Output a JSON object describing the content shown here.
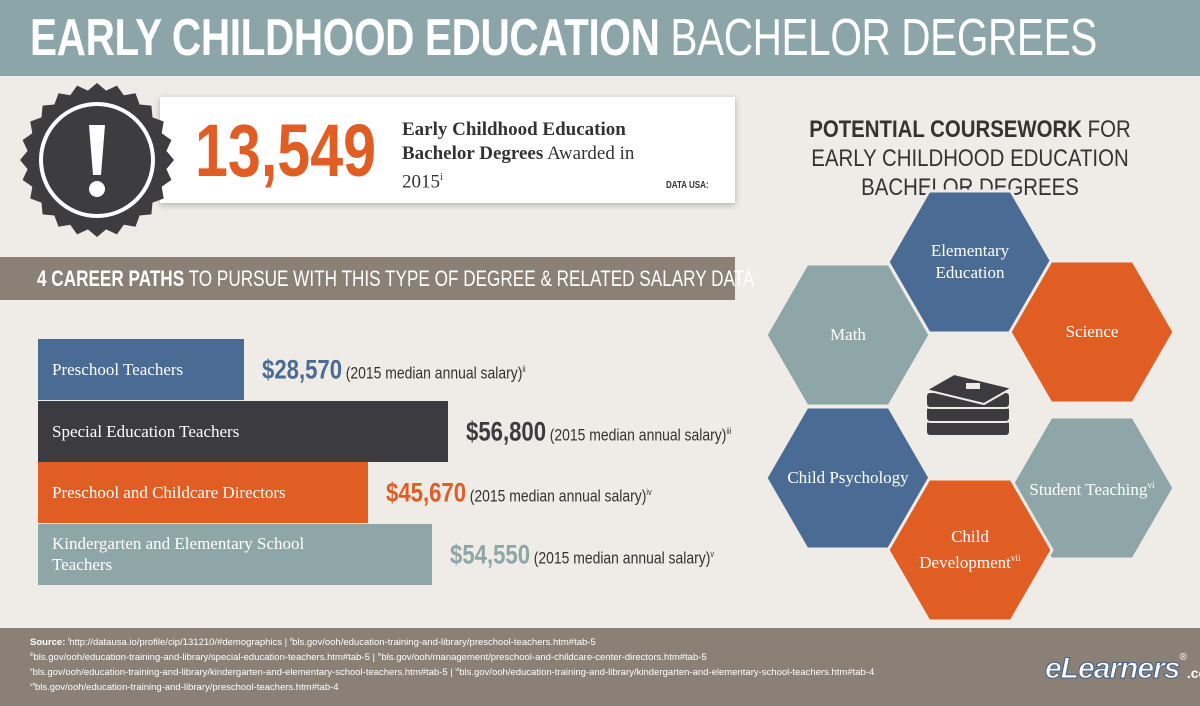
{
  "header": {
    "title_bold": "EARLY CHILDHOOD EDUCATION",
    "title_light": "BACHELOR DEGREES"
  },
  "stat": {
    "number": "13,549",
    "text_bold": "Early Childhood Education Bachelor Degrees",
    "text_rest": "Awarded in 2015",
    "ref": "i",
    "source_logo": "DATA USA:"
  },
  "career": {
    "heading_bold": "4 CAREER PATHS",
    "heading_rest": "TO PURSUE WITH THIS TYPE OF DEGREE & RELATED SALARY DATA"
  },
  "chart_data": {
    "type": "bar",
    "orientation": "horizontal",
    "categories": [
      "Preschool Teachers",
      "Special Education Teachers",
      "Preschool and Childcare Directors",
      "Kindergarten and Elementary School Teachers"
    ],
    "values": [
      28570,
      56800,
      45670,
      54550
    ],
    "value_labels": [
      "$28,570",
      "$56,800",
      "$45,670",
      "$54,550"
    ],
    "colors": [
      "#4a6b93",
      "#3b3b40",
      "#e05d24",
      "#8fa6a8"
    ],
    "note": "(2015 median annual salary)",
    "refs": [
      "ii",
      "iii",
      "iv",
      "v"
    ]
  },
  "coursework": {
    "title_bold": "POTENTIAL COURSEWORK",
    "title_rest": "FOR EARLY CHILDHOOD EDUCATION BACHELOR DEGREES",
    "topics": [
      {
        "label": "Elementary Education",
        "color": "#4a6b93"
      },
      {
        "label": "Math",
        "color": "#8fa6a8"
      },
      {
        "label": "Science",
        "color": "#e05d24"
      },
      {
        "label": "Child Psychology",
        "color": "#4a6b93"
      },
      {
        "label": "Student Teaching",
        "ref": "vi",
        "color": "#8fa6a8"
      },
      {
        "label": "Child Development",
        "ref": "vii",
        "color": "#e05d24"
      }
    ]
  },
  "sources": {
    "label": "Source:",
    "separator": " | ",
    "lines": [
      [
        {
          "ref": "i",
          "url": "http://datausa.io/profile/cip/131210/#demographics"
        },
        {
          "ref": "ii",
          "url": "bls.gov/ooh/education-training-and-library/preschool-teachers.htm#tab-5"
        }
      ],
      [
        {
          "ref": "iii",
          "url": "bls.gov/ooh/education-training-and-library/special-education-teachers.htm#tab-5"
        },
        {
          "ref": "iv",
          "url": "bls.gov/ooh/management/preschool-and-childcare-center-directors.htm#tab-5"
        }
      ],
      [
        {
          "ref": "v",
          "url": "bls.gov/ooh/education-training-and-library/kindergarten-and-elementary-school-teachers.htm#tab-5"
        },
        {
          "ref": "vi",
          "url": "bls.gov/ooh/education-training-and-library/kindergarten-and-elementary-school-teachers.htm#tab-4"
        }
      ],
      [
        {
          "ref": "vii",
          "url": "bls.gov/ooh/education-training-and-library/preschool-teachers.htm#tab-4"
        }
      ]
    ]
  },
  "logo": {
    "name": "eLearners",
    "mark": "®",
    "suffix": ".com"
  }
}
